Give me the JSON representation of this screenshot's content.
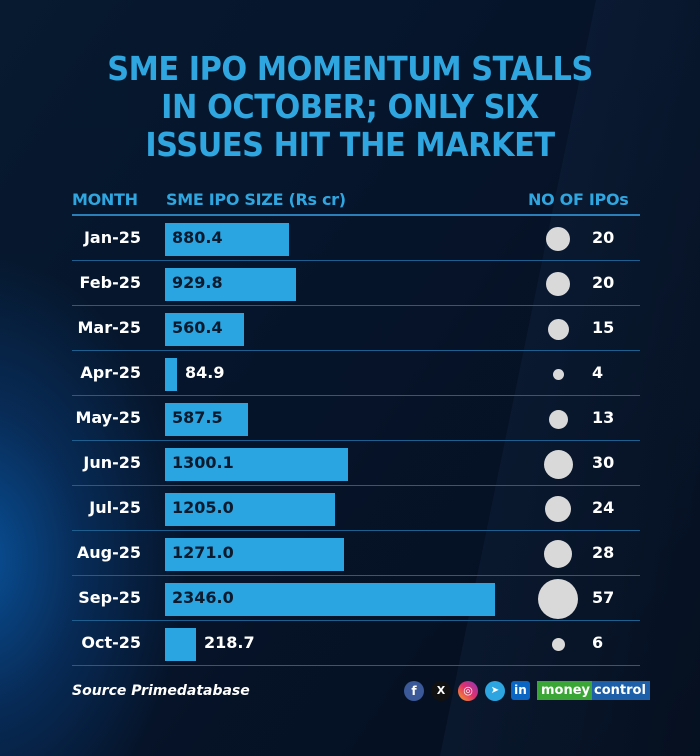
{
  "title": {
    "lines": [
      "SME IPO MOMENTUM STALLS",
      "IN OCTOBER; ONLY SIX",
      "ISSUES HIT THE MARKET"
    ]
  },
  "headers": {
    "month": "MONTH",
    "size": "SME IPO SIZE (Rs cr)",
    "count": "NO OF IPOs"
  },
  "rows": [
    {
      "month": "Jan-25",
      "size": "880.4",
      "count": "20"
    },
    {
      "month": "Feb-25",
      "size": "929.8",
      "count": "20"
    },
    {
      "month": "Mar-25",
      "size": "560.4",
      "count": "15"
    },
    {
      "month": "Apr-25",
      "size": "84.9",
      "count": "4"
    },
    {
      "month": "May-25",
      "size": "587.5",
      "count": "13"
    },
    {
      "month": "Jun-25",
      "size": "1300.1",
      "count": "30"
    },
    {
      "month": "Jul-25",
      "size": "1205.0",
      "count": "24"
    },
    {
      "month": "Aug-25",
      "size": "1271.0",
      "count": "28"
    },
    {
      "month": "Sep-25",
      "size": "2346.0",
      "count": "57"
    },
    {
      "month": "Oct-25",
      "size": "218.7",
      "count": "6"
    }
  ],
  "footer": {
    "source": "Source Primedatabase",
    "social": {
      "facebook": "f",
      "x": "X",
      "instagram": "◎",
      "telegram": "➤",
      "linkedin": "in"
    },
    "brand_part1": "money",
    "brand_part2": "control"
  },
  "colors": {
    "accent": "#2fa6e0",
    "bar": "#2aa5e2",
    "bubble": "#d9d9d9",
    "background": "#06142a"
  },
  "chart_data": {
    "type": "table",
    "title": "SME IPO MOMENTUM STALLS IN OCTOBER; ONLY SIX ISSUES HIT THE MARKET",
    "categories": [
      "Jan-25",
      "Feb-25",
      "Mar-25",
      "Apr-25",
      "May-25",
      "Jun-25",
      "Jul-25",
      "Aug-25",
      "Sep-25",
      "Oct-25"
    ],
    "series": [
      {
        "name": "SME IPO SIZE (Rs cr)",
        "chart": "bar",
        "values": [
          880.4,
          929.8,
          560.4,
          84.9,
          587.5,
          1300.1,
          1205.0,
          1271.0,
          2346.0,
          218.7
        ]
      },
      {
        "name": "NO OF IPOs",
        "chart": "bubble",
        "values": [
          20,
          20,
          15,
          4,
          13,
          30,
          24,
          28,
          57,
          6
        ]
      }
    ],
    "xlabel": "MONTH",
    "ylabel": "SME IPO SIZE (Rs cr)",
    "source": "Source Primedatabase",
    "grid": false,
    "legend": "none"
  }
}
